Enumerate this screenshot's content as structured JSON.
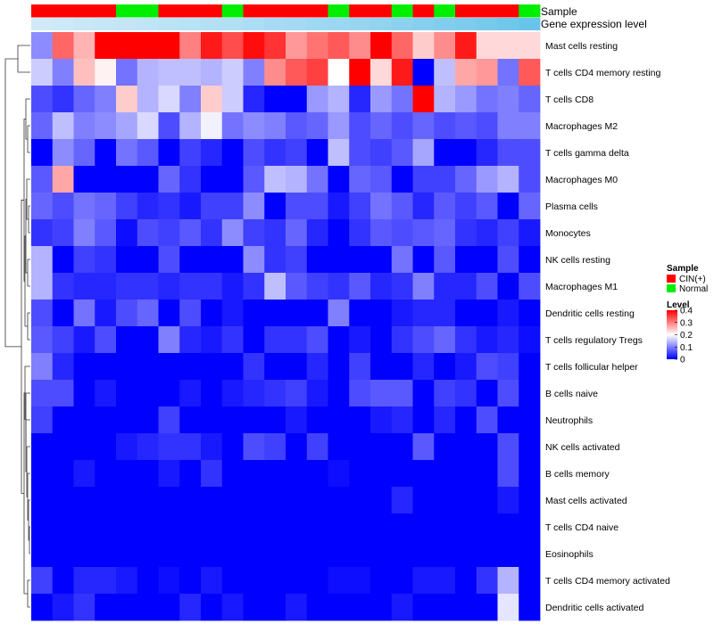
{
  "chart_data": {
    "type": "heatmap",
    "annotation_labels": {
      "sample": "Sample",
      "gene": "Gene expression level"
    },
    "sample_groups": [
      "C",
      "C",
      "C",
      "C",
      "N",
      "N",
      "C",
      "C",
      "C",
      "N",
      "C",
      "C",
      "C",
      "C",
      "N",
      "C",
      "C",
      "N",
      "C",
      "N",
      "C",
      "C",
      "C",
      "N"
    ],
    "gene_level": [
      0.12,
      0.15,
      0.18,
      0.2,
      0.22,
      0.25,
      0.28,
      0.3,
      0.33,
      0.36,
      0.4,
      0.43,
      0.46,
      0.5,
      0.53,
      0.56,
      0.6,
      0.64,
      0.68,
      0.72,
      0.76,
      0.8,
      0.86,
      0.92
    ],
    "rows": [
      "Mast cells resting",
      "T cells CD4 memory resting",
      "T cells CD8",
      "Macrophages M2",
      "T cells gamma delta",
      "Macrophages M0",
      "Plasma cells",
      "Monocytes",
      "NK cells resting",
      "Macrophages M1",
      "Dendritic cells resting",
      "T cells regulatory  Tregs",
      "T cells follicular helper",
      "B cells naive",
      "Neutrophils",
      "NK cells activated",
      "B cells memory",
      "Mast cells activated",
      "T cells CD4 naive",
      "Eosinophils",
      "T cells CD4 memory activated",
      "Dendritic cells activated"
    ],
    "values": [
      [
        0.11,
        0.32,
        0.26,
        0.4,
        0.4,
        0.4,
        0.4,
        0.3,
        0.38,
        0.34,
        0.39,
        0.36,
        0.28,
        0.31,
        0.33,
        0.29,
        0.4,
        0.32,
        0.24,
        0.29,
        0.38,
        0.23,
        0.23,
        0.23
      ],
      [
        0.16,
        0.1,
        0.25,
        0.21,
        0.09,
        0.14,
        0.15,
        0.15,
        0.14,
        0.16,
        0.1,
        0.29,
        0.33,
        0.35,
        0.2,
        0.4,
        0.23,
        0.38,
        0.0,
        0.15,
        0.27,
        0.28,
        0.09,
        0.33
      ],
      [
        0.06,
        0.04,
        0.08,
        0.1,
        0.24,
        0.14,
        0.17,
        0.1,
        0.24,
        0.16,
        0.03,
        0.0,
        0.0,
        0.12,
        0.14,
        0.03,
        0.12,
        0.09,
        0.4,
        0.14,
        0.12,
        0.09,
        0.1,
        0.08
      ],
      [
        0.08,
        0.15,
        0.1,
        0.11,
        0.13,
        0.17,
        0.06,
        0.14,
        0.19,
        0.09,
        0.11,
        0.1,
        0.07,
        0.08,
        0.12,
        0.06,
        0.08,
        0.06,
        0.08,
        0.06,
        0.07,
        0.06,
        0.1,
        0.1
      ],
      [
        0.0,
        0.11,
        0.08,
        0.0,
        0.09,
        0.07,
        0.0,
        0.05,
        0.03,
        0.0,
        0.06,
        0.04,
        0.05,
        0.0,
        0.15,
        0.06,
        0.05,
        0.07,
        0.13,
        0.0,
        0.0,
        0.03,
        0.06,
        0.06
      ],
      [
        0.07,
        0.27,
        0.0,
        0.0,
        0.0,
        0.0,
        0.08,
        0.04,
        0.0,
        0.0,
        0.07,
        0.15,
        0.14,
        0.09,
        0.0,
        0.08,
        0.07,
        0.0,
        0.05,
        0.05,
        0.08,
        0.12,
        0.14,
        0.06
      ],
      [
        0.08,
        0.06,
        0.09,
        0.08,
        0.05,
        0.03,
        0.04,
        0.02,
        0.05,
        0.05,
        0.11,
        0.0,
        0.06,
        0.06,
        0.02,
        0.05,
        0.09,
        0.07,
        0.03,
        0.07,
        0.05,
        0.07,
        0.0,
        0.08
      ],
      [
        0.04,
        0.05,
        0.1,
        0.07,
        0.01,
        0.06,
        0.05,
        0.07,
        0.04,
        0.11,
        0.05,
        0.04,
        0.08,
        0.03,
        0.0,
        0.04,
        0.07,
        0.06,
        0.07,
        0.08,
        0.04,
        0.03,
        0.05,
        0.02
      ],
      [
        0.14,
        0.0,
        0.05,
        0.04,
        0.0,
        0.0,
        0.06,
        0.0,
        0.0,
        0.0,
        0.11,
        0.04,
        0.05,
        0.0,
        0.0,
        0.0,
        0.0,
        0.09,
        0.0,
        0.07,
        0.0,
        0.0,
        0.06,
        0.0
      ],
      [
        0.14,
        0.04,
        0.03,
        0.03,
        0.04,
        0.04,
        0.03,
        0.04,
        0.04,
        0.02,
        0.04,
        0.15,
        0.07,
        0.05,
        0.04,
        0.07,
        0.03,
        0.04,
        0.1,
        0.03,
        0.03,
        0.06,
        0.0,
        0.06
      ],
      [
        0.06,
        0.0,
        0.09,
        0.02,
        0.06,
        0.08,
        0.0,
        0.06,
        0.0,
        0.02,
        0.0,
        0.0,
        0.0,
        0.0,
        0.1,
        0.0,
        0.0,
        0.02,
        0.03,
        0.03,
        0.0,
        0.0,
        0.02,
        0.0
      ],
      [
        0.07,
        0.05,
        0.02,
        0.06,
        0.0,
        0.0,
        0.1,
        0.03,
        0.02,
        0.04,
        0.0,
        0.04,
        0.04,
        0.06,
        0.0,
        0.02,
        0.0,
        0.04,
        0.06,
        0.08,
        0.04,
        0.02,
        0.03,
        0.01
      ],
      [
        0.1,
        0.03,
        0.0,
        0.0,
        0.0,
        0.0,
        0.0,
        0.0,
        0.0,
        0.0,
        0.04,
        0.0,
        0.0,
        0.03,
        0.0,
        0.05,
        0.0,
        0.0,
        0.03,
        0.0,
        0.02,
        0.06,
        0.05,
        0.0
      ],
      [
        0.06,
        0.06,
        0.0,
        0.02,
        0.0,
        0.0,
        0.0,
        0.02,
        0.0,
        0.02,
        0.03,
        0.04,
        0.05,
        0.02,
        0.0,
        0.06,
        0.07,
        0.07,
        0.0,
        0.05,
        0.04,
        0.0,
        0.06,
        0.0
      ],
      [
        0.05,
        0.0,
        0.0,
        0.0,
        0.0,
        0.0,
        0.05,
        0.0,
        0.0,
        0.0,
        0.0,
        0.0,
        0.02,
        0.0,
        0.0,
        0.0,
        0.02,
        0.03,
        0.0,
        0.03,
        0.0,
        0.06,
        0.0,
        0.0
      ],
      [
        0.0,
        0.0,
        0.0,
        0.0,
        0.02,
        0.03,
        0.04,
        0.04,
        0.02,
        0.0,
        0.06,
        0.05,
        0.0,
        0.05,
        0.0,
        0.0,
        0.0,
        0.0,
        0.07,
        0.0,
        0.0,
        0.0,
        0.06,
        0.0
      ],
      [
        0.0,
        0.0,
        0.02,
        0.0,
        0.0,
        0.0,
        0.02,
        0.0,
        0.04,
        0.0,
        0.0,
        0.0,
        0.0,
        0.0,
        0.01,
        0.0,
        0.0,
        0.0,
        0.0,
        0.0,
        0.0,
        0.0,
        0.06,
        0.0
      ],
      [
        0.0,
        0.0,
        0.0,
        0.0,
        0.0,
        0.0,
        0.0,
        0.0,
        0.0,
        0.0,
        0.0,
        0.0,
        0.0,
        0.0,
        0.0,
        0.0,
        0.0,
        0.03,
        0.0,
        0.0,
        0.0,
        0.0,
        0.02,
        0.0
      ],
      [
        0.0,
        0.0,
        0.0,
        0.0,
        0.0,
        0.0,
        0.0,
        0.0,
        0.0,
        0.0,
        0.0,
        0.0,
        0.0,
        0.0,
        0.0,
        0.0,
        0.0,
        0.0,
        0.0,
        0.0,
        0.0,
        0.0,
        0.0,
        0.0
      ],
      [
        0.0,
        0.0,
        0.0,
        0.0,
        0.0,
        0.0,
        0.0,
        0.0,
        0.0,
        0.0,
        0.0,
        0.0,
        0.0,
        0.0,
        0.0,
        0.0,
        0.0,
        0.0,
        0.0,
        0.0,
        0.0,
        0.0,
        0.0,
        0.0
      ],
      [
        0.05,
        0.0,
        0.03,
        0.03,
        0.02,
        0.0,
        0.01,
        0.0,
        0.02,
        0.0,
        0.0,
        0.0,
        0.0,
        0.0,
        0.01,
        0.01,
        0.0,
        0.0,
        0.02,
        0.02,
        0.0,
        0.04,
        0.14,
        0.0
      ],
      [
        0.0,
        0.02,
        0.04,
        0.0,
        0.0,
        0.0,
        0.0,
        0.03,
        0.0,
        0.02,
        0.0,
        0.0,
        0.02,
        0.0,
        0.0,
        0.0,
        0.0,
        0.02,
        0.0,
        0.0,
        0.0,
        0.0,
        0.18,
        0.0
      ]
    ],
    "legend": {
      "sample_title": "Sample",
      "sample_entries": [
        {
          "key": "C",
          "label": "CIN(+)",
          "color": "#ff0000"
        },
        {
          "key": "N",
          "label": "Normal",
          "color": "#00ee00"
        }
      ],
      "level_title": "Level",
      "level_ticks": [
        "0.4",
        "0.3",
        "0.2",
        "0.1",
        "0"
      ],
      "level_range": [
        0,
        0.4
      ]
    },
    "colors": {
      "low": "#0000ff",
      "mid": "#ffffff",
      "high": "#ff0000",
      "gene_light": "#dff0fa",
      "gene_dark": "#5ec0ea",
      "dendrogram": "#333333"
    }
  }
}
